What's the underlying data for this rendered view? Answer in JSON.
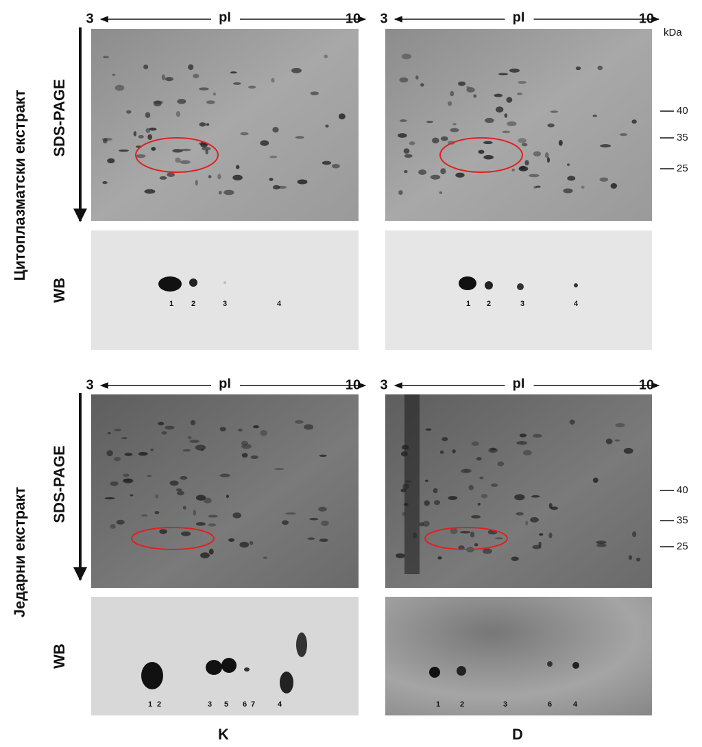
{
  "axis": {
    "left": "3",
    "label": "pI",
    "right": "10"
  },
  "kda": {
    "unit": "kDa",
    "markers": [
      "40",
      "35",
      "25"
    ]
  },
  "rows": [
    {
      "label": "Цитоплазматски екстракт",
      "gel_label": "SDS-PAGE",
      "blot_label": "WB",
      "columns": [
        {
          "spots": [
            "1",
            "2",
            "3",
            "4"
          ]
        },
        {
          "spots": [
            "1",
            "2",
            "3",
            "4"
          ]
        }
      ]
    },
    {
      "label": "Једарни екстракт",
      "gel_label": "SDS-PAGE",
      "blot_label": "WB",
      "columns": [
        {
          "spots": [
            "1",
            "2",
            "3",
            "5",
            "6",
            "7",
            "4"
          ]
        },
        {
          "spots": [
            "1",
            "2",
            "3",
            "6",
            "4"
          ]
        }
      ]
    }
  ],
  "columns": [
    "K",
    "D"
  ]
}
